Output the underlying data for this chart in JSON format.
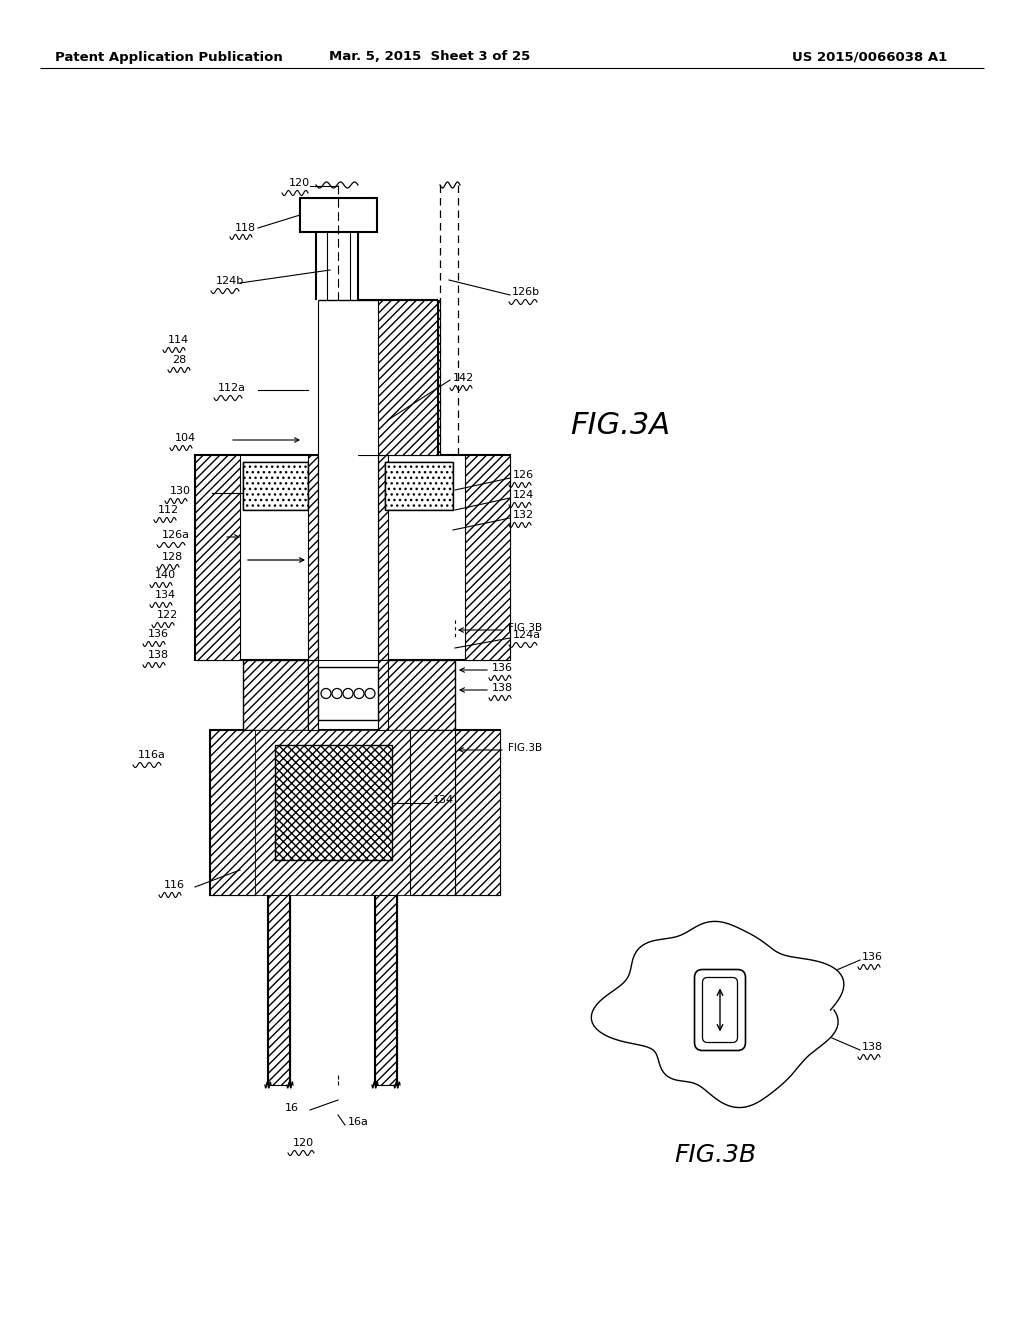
{
  "title_left": "Patent Application Publication",
  "title_mid": "Mar. 5, 2015  Sheet 3 of 25",
  "title_right": "US 2015/0066038 A1",
  "bg_color": "#ffffff",
  "line_color": "#000000"
}
